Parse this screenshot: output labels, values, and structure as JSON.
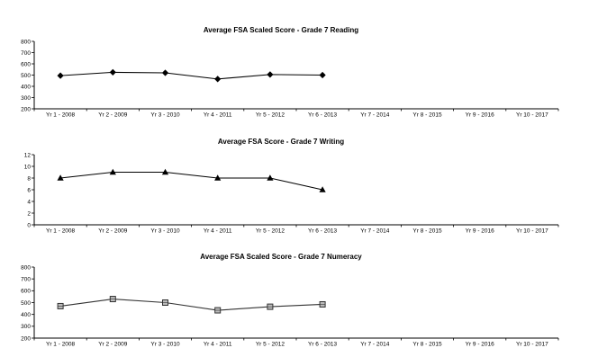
{
  "chart_data": [
    {
      "type": "line",
      "title": "Average FSA Scaled Score - Grade 7 Reading",
      "categories": [
        "Yr 1 - 2008",
        "Yr 2 - 2009",
        "Yr 3 - 2010",
        "Yr 4 - 2011",
        "Yr 5 - 2012",
        "Yr 6 - 2013",
        "Yr 7 - 2014",
        "Yr 8 - 2015",
        "Yr 9 - 2016",
        "Yr 10 - 2017"
      ],
      "series": [
        {
          "values": [
            495,
            525,
            520,
            465,
            505,
            500,
            null,
            null,
            null,
            null
          ],
          "marker": "diamond"
        }
      ],
      "ylim": [
        200,
        800
      ],
      "yticks": [
        200,
        300,
        400,
        500,
        600,
        700,
        800
      ],
      "xlabel": "",
      "ylabel": "",
      "grid": false,
      "color": "#000000"
    },
    {
      "type": "line",
      "title": "Average FSA Score - Grade 7 Writing",
      "categories": [
        "Yr 1 - 2008",
        "Yr 2 - 2009",
        "Yr 3 - 2010",
        "Yr 4 - 2011",
        "Yr 5 - 2012",
        "Yr 6 - 2013",
        "Yr 7 - 2014",
        "Yr 8 - 2015",
        "Yr 9 - 2016",
        "Yr 10 - 2017"
      ],
      "series": [
        {
          "values": [
            8,
            9,
            9,
            8,
            8,
            6,
            null,
            null,
            null,
            null
          ],
          "marker": "triangle"
        }
      ],
      "ylim": [
        0,
        12
      ],
      "yticks": [
        0,
        2,
        4,
        6,
        8,
        10,
        12
      ],
      "xlabel": "",
      "ylabel": "",
      "grid": false,
      "color": "#000000"
    },
    {
      "type": "line",
      "title": "Average FSA Scaled Score - Grade 7 Numeracy",
      "categories": [
        "Yr 1 - 2008",
        "Yr 2 - 2009",
        "Yr 3 - 2010",
        "Yr 4 - 2011",
        "Yr 5 - 2012",
        "Yr 6 - 2013",
        "Yr 7 - 2014",
        "Yr 8 - 2015",
        "Yr 9 - 2016",
        "Yr 10 - 2017"
      ],
      "series": [
        {
          "values": [
            470,
            530,
            500,
            435,
            465,
            485,
            null,
            null,
            null,
            null
          ],
          "marker": "square"
        }
      ],
      "ylim": [
        200,
        800
      ],
      "yticks": [
        200,
        300,
        400,
        500,
        600,
        700,
        800
      ],
      "xlabel": "",
      "ylabel": "",
      "grid": false,
      "color": "#333333"
    }
  ]
}
